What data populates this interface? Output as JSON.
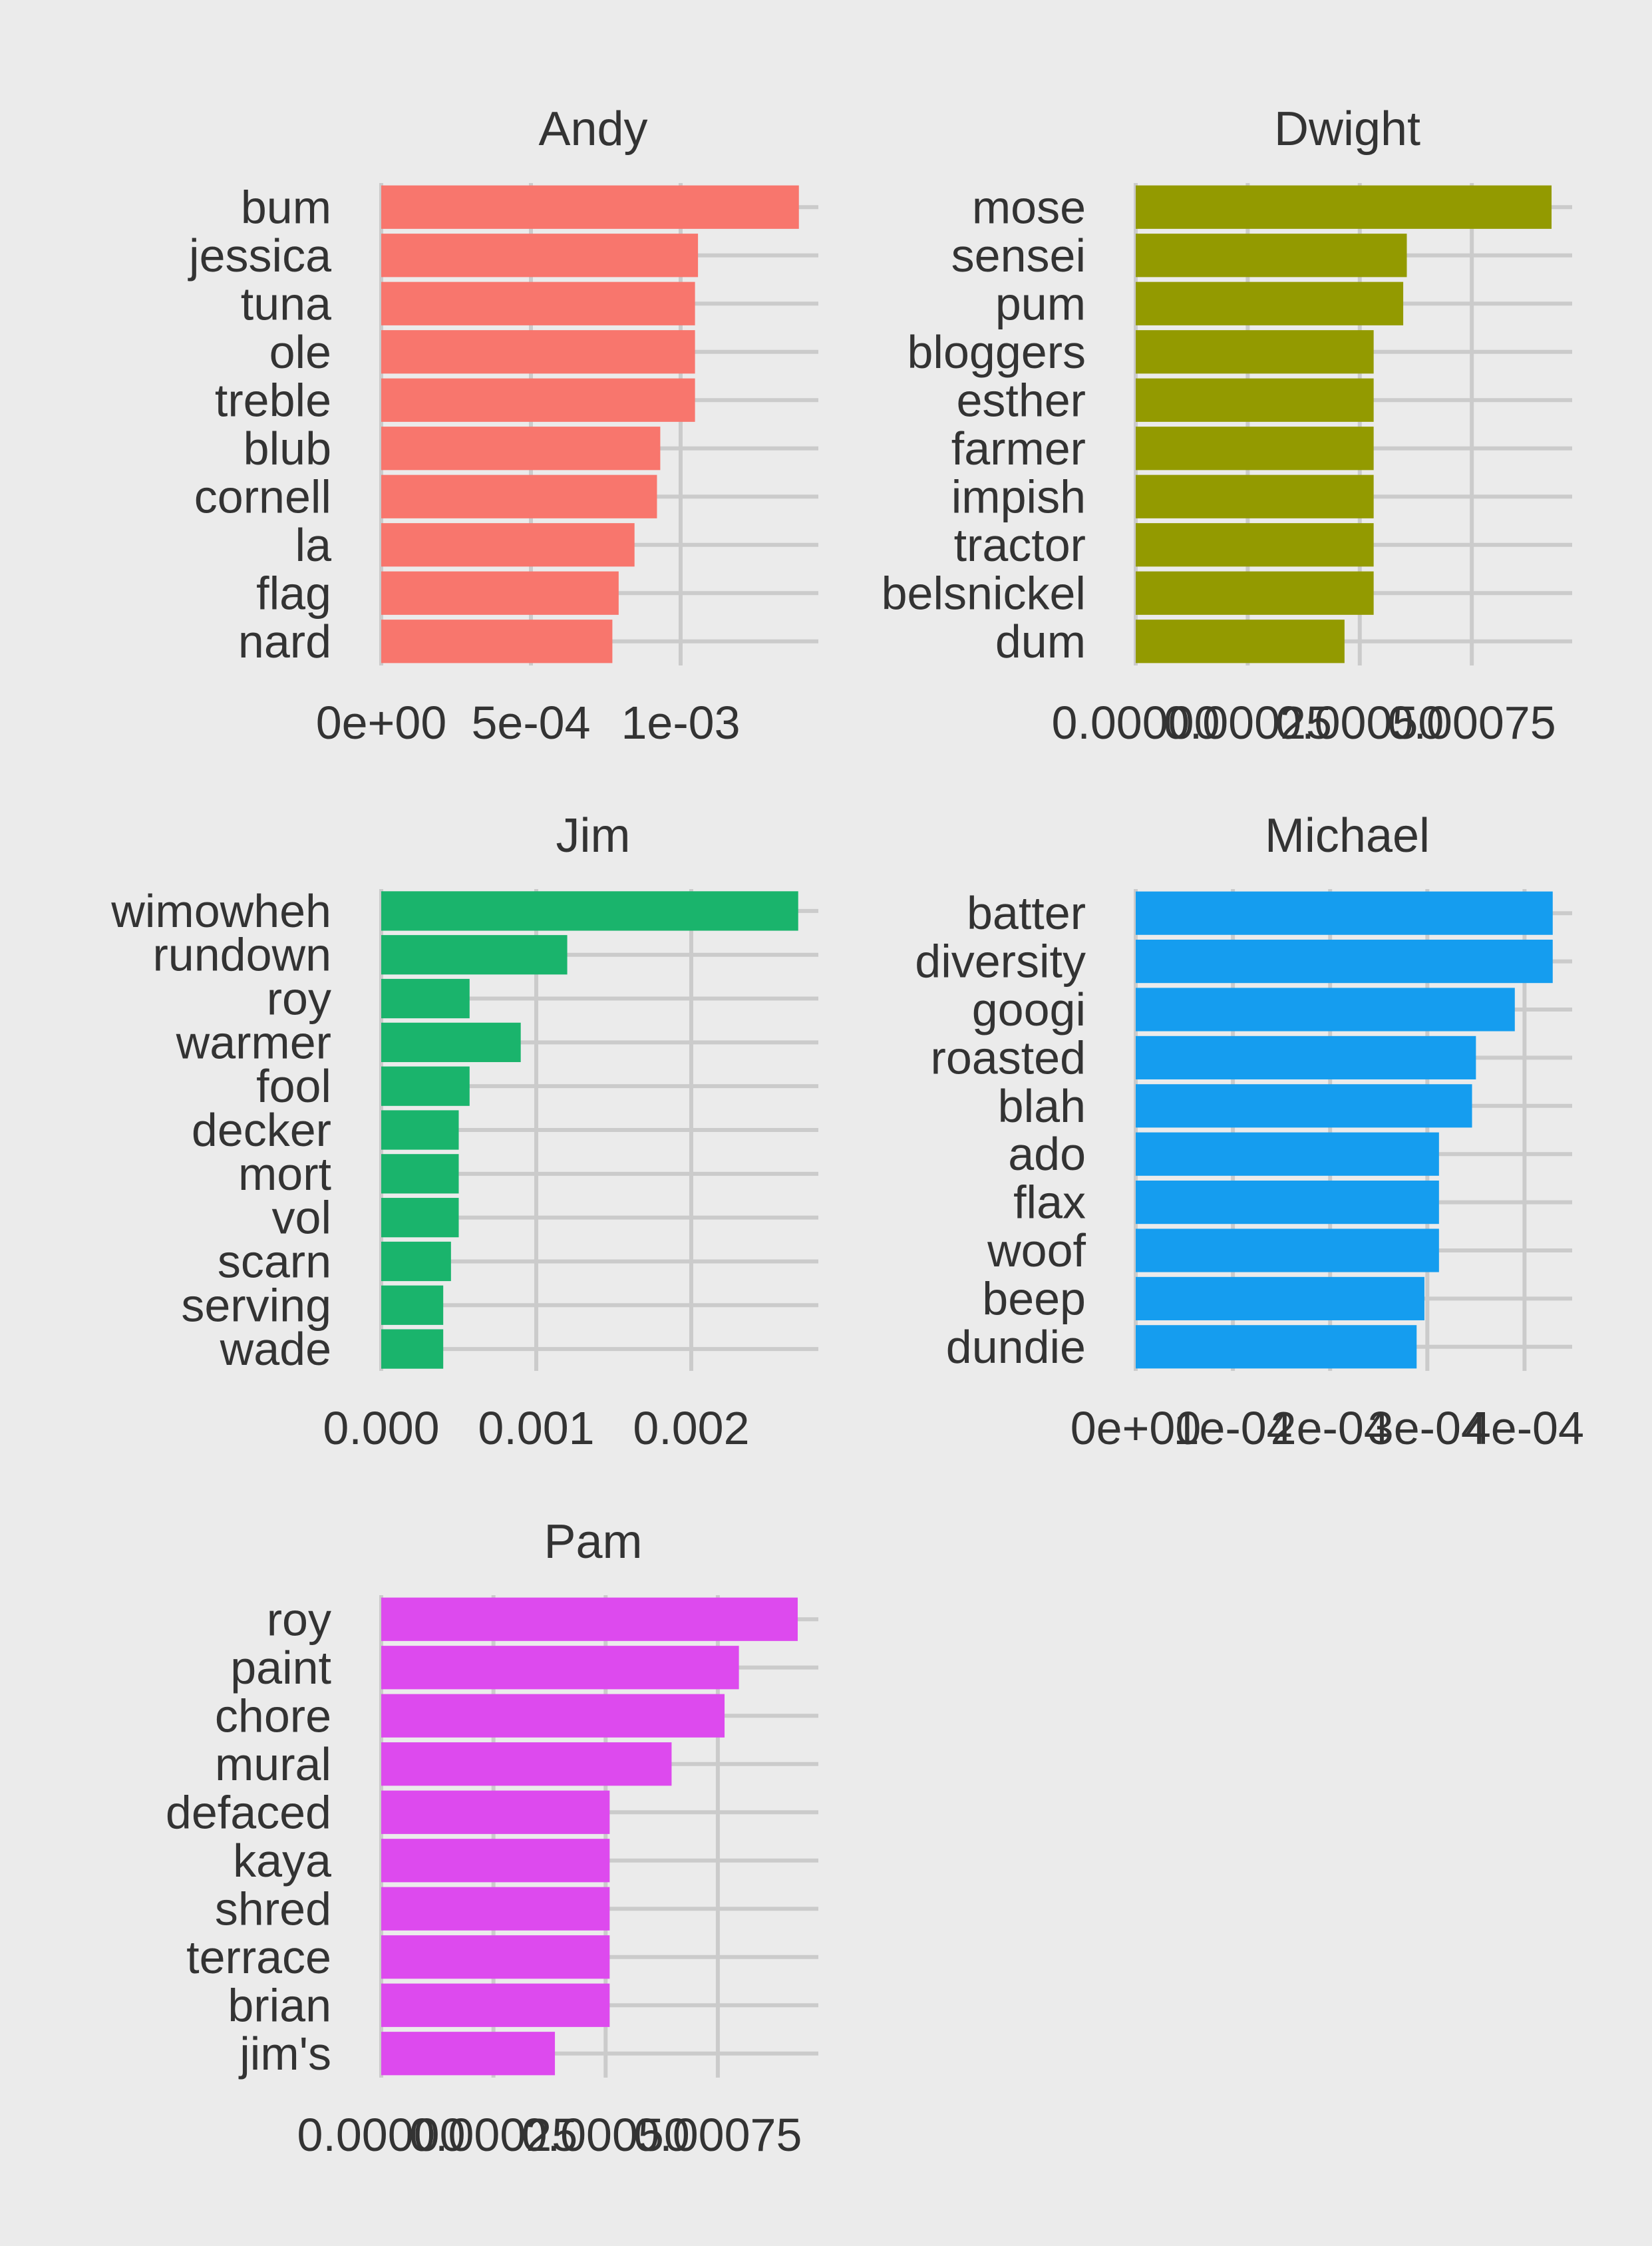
{
  "chart_data": [
    {
      "type": "bar",
      "orientation": "horizontal",
      "title": "Andy",
      "color": "#f8766d",
      "categories": [
        "bum",
        "jessica",
        "tuna",
        "ole",
        "treble",
        "blub",
        "cornell",
        "la",
        "flag",
        "nard"
      ],
      "values": [
        0.001395,
        0.001058,
        0.001048,
        0.001048,
        0.001048,
        0.000932,
        0.000921,
        0.000846,
        0.000793,
        0.000772
      ],
      "xlim": [
        0,
        0.00146
      ],
      "ticks": [
        0,
        0.0005,
        0.001
      ],
      "tick_labels": [
        "0e+00",
        "5e-04",
        "1e-03"
      ],
      "grid": true
    },
    {
      "type": "bar",
      "orientation": "horizontal",
      "title": "Dwight",
      "color": "#939a00",
      "categories": [
        "mose",
        "sensei",
        "pum",
        "bloggers",
        "esther",
        "farmer",
        "impish",
        "tractor",
        "belsnickel",
        "dum"
      ],
      "values": [
        0.000928,
        0.000605,
        0.000597,
        0.000531,
        0.000531,
        0.000531,
        0.000531,
        0.000531,
        0.000531,
        0.000466
      ],
      "xlim": [
        0,
        0.000974
      ],
      "ticks": [
        0,
        0.00025,
        0.0005,
        0.00075
      ],
      "tick_labels": [
        "0.00000",
        "0.00025",
        "0.00050",
        "0.00075"
      ],
      "grid": true
    },
    {
      "type": "bar",
      "orientation": "horizontal",
      "title": "Jim",
      "color": "#1ab46c",
      "categories": [
        "wimowheh",
        "rundown",
        "roy",
        "warmer",
        "fool",
        "decker",
        "mort",
        "vol",
        "scarn",
        "serving",
        "wade"
      ],
      "values": [
        0.00269,
        0.0012,
        0.00057,
        0.0009,
        0.00057,
        0.0005,
        0.0005,
        0.0005,
        0.00045,
        0.0004,
        0.0004
      ],
      "xlim": [
        0,
        0.00282
      ],
      "ticks": [
        0,
        0.001,
        0.002
      ],
      "tick_labels": [
        "0.000",
        "0.001",
        "0.002"
      ],
      "grid": true
    },
    {
      "type": "bar",
      "orientation": "horizontal",
      "title": "Michael",
      "color": "#159def",
      "categories": [
        "batter",
        "diversity",
        "googi",
        "roasted",
        "blah",
        "ado",
        "flax",
        "woof",
        "beep",
        "dundie"
      ],
      "values": [
        0.000429,
        0.000429,
        0.00039,
        0.00035,
        0.000346,
        0.000312,
        0.000312,
        0.000312,
        0.000297,
        0.000289
      ],
      "xlim": [
        0,
        0.000449
      ],
      "ticks": [
        0,
        0.0001,
        0.0002,
        0.0003,
        0.0004
      ],
      "tick_labels": [
        "0e+00",
        "1e-04",
        "2e-04",
        "3e-04",
        "4e-04"
      ],
      "grid": true
    },
    {
      "type": "bar",
      "orientation": "horizontal",
      "title": "Pam",
      "color": "#dd4aee",
      "categories": [
        "roy",
        "paint",
        "chore",
        "mural",
        "defaced",
        "kaya",
        "shred",
        "terrace",
        "brian",
        "jim's"
      ],
      "values": [
        0.000928,
        0.000797,
        0.000765,
        0.000647,
        0.000509,
        0.000509,
        0.000509,
        0.000509,
        0.000509,
        0.000387
      ],
      "xlim": [
        0,
        0.000974
      ],
      "ticks": [
        0,
        0.00025,
        0.0005,
        0.00075
      ],
      "tick_labels": [
        "0.00000",
        "0.00025",
        "0.00050",
        "0.00075"
      ],
      "grid": true
    }
  ]
}
